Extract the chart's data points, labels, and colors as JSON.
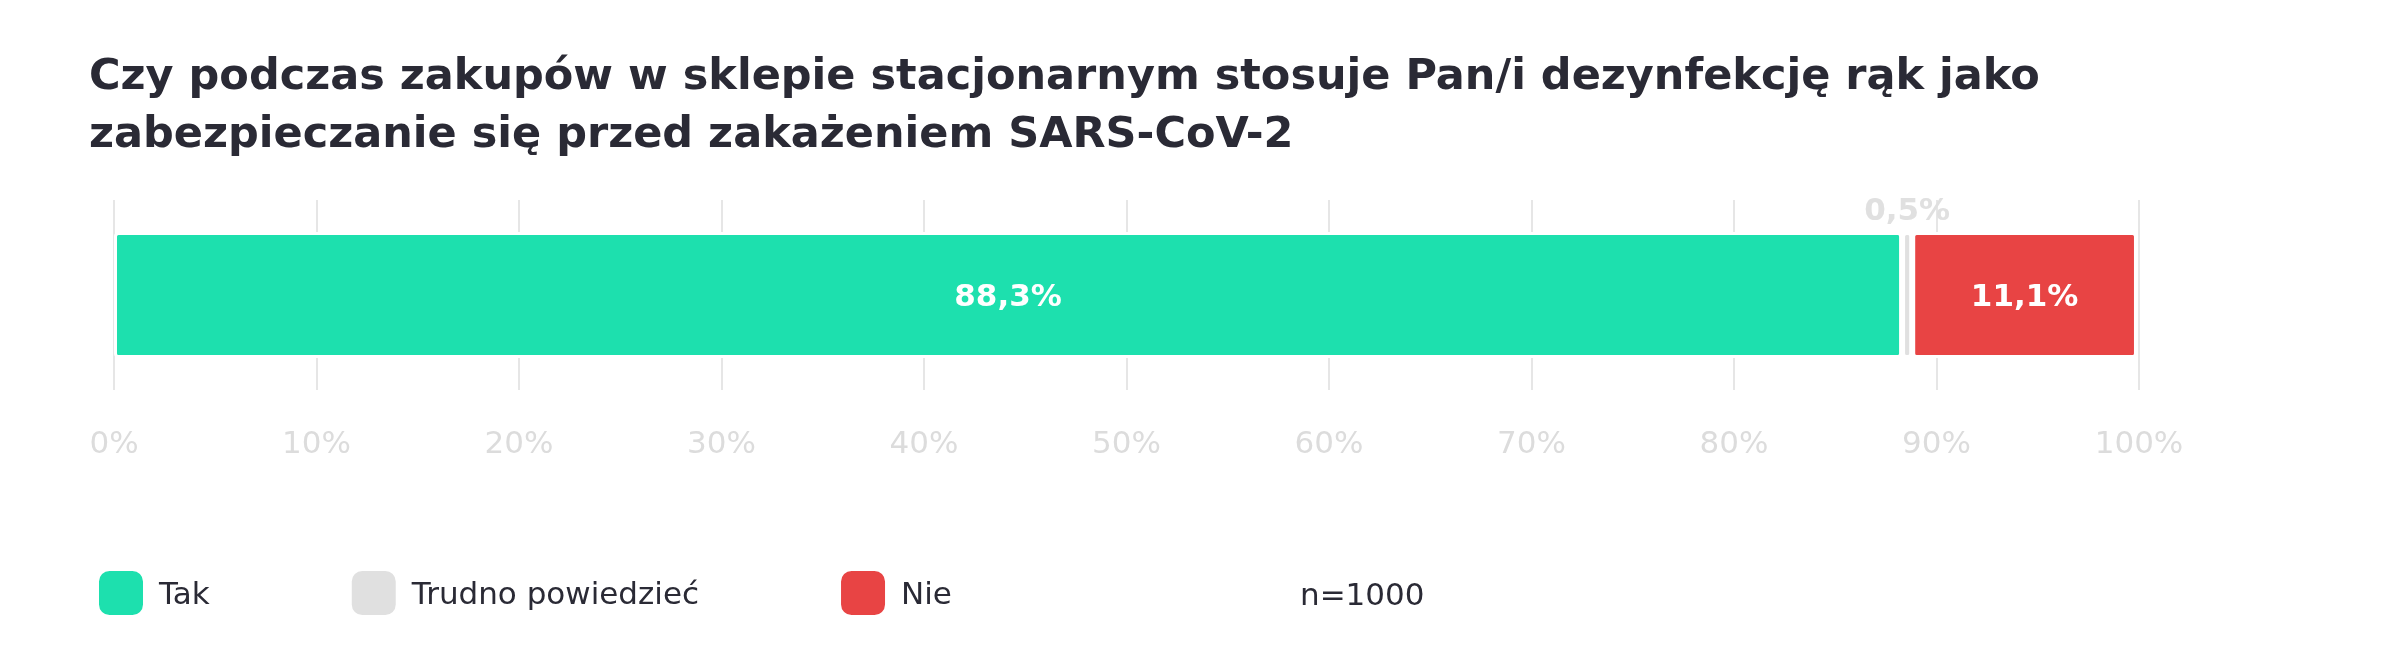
{
  "chart_data": {
    "type": "bar",
    "orientation": "horizontal",
    "stacked": true,
    "title": "Czy podczas zakupów w sklepie stacjonarnym stosuje Pan/i dezynfekcję rąk jako zabezpieczanie się przed zakażeniem SARS-CoV-2",
    "categories": [
      null
    ],
    "series": [
      {
        "name": "Tak",
        "color": "#1de0ae",
        "values": [
          88.3
        ],
        "value_labels": [
          "88,3%"
        ]
      },
      {
        "name": "Trudno powiedzieć",
        "color": "#e0e0e0",
        "values": [
          0.5
        ],
        "value_labels": [
          "0,5%"
        ]
      },
      {
        "name": "Nie",
        "color": "#e84444",
        "values": [
          11.1
        ],
        "value_labels": [
          "11,1%"
        ]
      }
    ],
    "xlim": [
      0,
      100
    ],
    "xticks": [
      {
        "value": 0,
        "label": "0%"
      },
      {
        "value": 10,
        "label": "10%"
      },
      {
        "value": 20,
        "label": "20%"
      },
      {
        "value": 30,
        "label": "30%"
      },
      {
        "value": 40,
        "label": "40%"
      },
      {
        "value": 50,
        "label": "50%"
      },
      {
        "value": 60,
        "label": "60%"
      },
      {
        "value": 70,
        "label": "70%"
      },
      {
        "value": 80,
        "label": "80%"
      },
      {
        "value": 90,
        "label": "90%"
      },
      {
        "value": 100,
        "label": "100%"
      }
    ],
    "grid": "x",
    "legend": "bottom left",
    "annotations": [
      "n=1000"
    ]
  }
}
